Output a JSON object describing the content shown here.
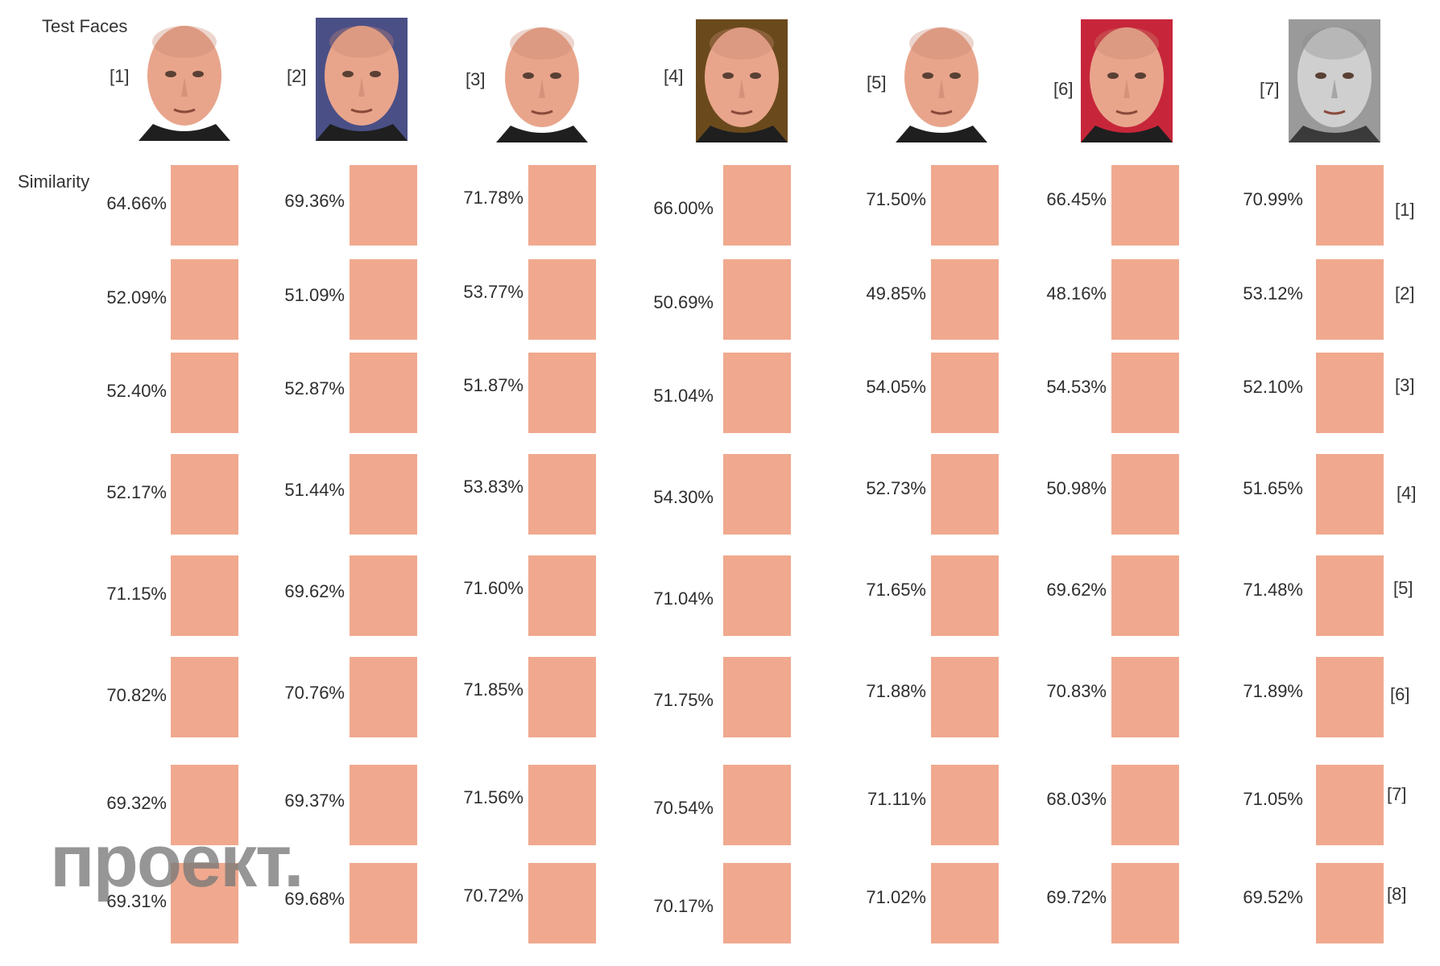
{
  "header": {
    "test_faces_label": "Test Faces",
    "similarity_label": "Similarity"
  },
  "faces": [
    {
      "label": "[1]",
      "style": "color",
      "bg": "#ffffff"
    },
    {
      "label": "[2]",
      "style": "color",
      "bg": "#4a4f86"
    },
    {
      "label": "[3]",
      "style": "color",
      "bg": "#ffffff"
    },
    {
      "label": "[4]",
      "style": "color",
      "bg": "#6a4a1c"
    },
    {
      "label": "[5]",
      "style": "color",
      "bg": "#ffffff"
    },
    {
      "label": "[6]",
      "style": "color",
      "bg": "#c7263a"
    },
    {
      "label": "[7]",
      "style": "grayscale",
      "bg": "#9a9a9a"
    }
  ],
  "row_labels": [
    "[1]",
    "[2]",
    "[3]",
    "[4]",
    "[5]",
    "[6]",
    "[7]",
    "[8]"
  ],
  "similarity": [
    [
      "64.66%",
      "69.36%",
      "71.78%",
      "66.00%",
      "71.50%",
      "66.45%",
      "70.99%"
    ],
    [
      "52.09%",
      "51.09%",
      "53.77%",
      "50.69%",
      "49.85%",
      "48.16%",
      "53.12%"
    ],
    [
      "52.40%",
      "52.87%",
      "51.87%",
      "51.04%",
      "54.05%",
      "54.53%",
      "52.10%"
    ],
    [
      "52.17%",
      "51.44%",
      "53.83%",
      "54.30%",
      "52.73%",
      "50.98%",
      "51.65%"
    ],
    [
      "71.15%",
      "69.62%",
      "71.60%",
      "71.04%",
      "71.65%",
      "69.62%",
      "71.48%"
    ],
    [
      "70.82%",
      "70.76%",
      "71.85%",
      "71.75%",
      "71.88%",
      "70.83%",
      "71.89%"
    ],
    [
      "69.32%",
      "69.37%",
      "71.56%",
      "70.54%",
      "71.11%",
      "68.03%",
      "71.05%"
    ],
    [
      "69.31%",
      "69.68%",
      "70.72%",
      "70.17%",
      "71.02%",
      "69.72%",
      "69.52%"
    ]
  ],
  "colors": {
    "cell": "#f0a98e",
    "skin": "#e8a58c"
  },
  "watermark": "проект."
}
